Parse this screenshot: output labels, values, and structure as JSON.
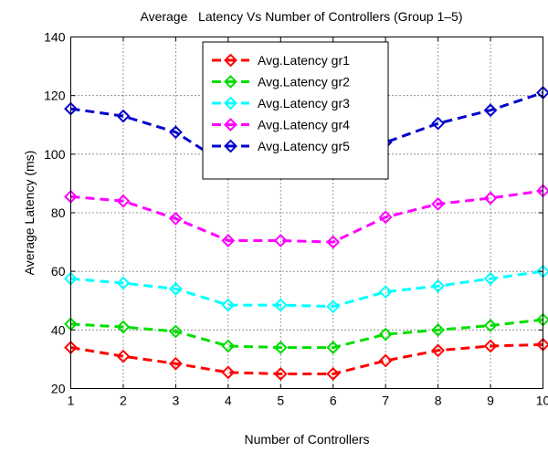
{
  "chart_data": {
    "type": "line",
    "title": "Average   Latency Vs Number of Controllers (Group 1–5)",
    "xlabel": "Number of Controllers",
    "ylabel": "Average Latency (ms)",
    "xlim": [
      1,
      10
    ],
    "ylim": [
      20,
      140
    ],
    "x": [
      1,
      2,
      3,
      4,
      5,
      6,
      7,
      8,
      9,
      10
    ],
    "x_ticks": [
      "1",
      "2",
      "3",
      "4",
      "5",
      "6",
      "7",
      "8",
      "9",
      "10"
    ],
    "y_ticks": [
      "20",
      "40",
      "60",
      "80",
      "100",
      "120",
      "140"
    ],
    "grid": true,
    "legend_position": "top-center",
    "series": [
      {
        "name": "Avg.Latency gr1",
        "color": "#ff0000",
        "values": [
          34,
          31,
          28.5,
          25.5,
          25,
          25,
          29.5,
          33,
          34.5,
          35
        ]
      },
      {
        "name": "Avg.Latency gr2",
        "color": "#00dd00",
        "values": [
          42,
          41,
          39.5,
          34.5,
          34,
          34,
          38.5,
          40,
          41.5,
          43.5
        ]
      },
      {
        "name": "Avg.Latency gr3",
        "color": "#00ffff",
        "values": [
          57.5,
          56,
          54,
          48.5,
          48.5,
          48,
          53,
          55,
          57.5,
          60
        ]
      },
      {
        "name": "Avg.Latency gr4",
        "color": "#ff00ff",
        "values": [
          85.5,
          84,
          78,
          70.5,
          70.5,
          70,
          78.5,
          83,
          85,
          87.5
        ]
      },
      {
        "name": "Avg.Latency gr5",
        "color": "#0000cc",
        "values": [
          115.5,
          113,
          107.5,
          96,
          95.5,
          95.5,
          104,
          110.5,
          115,
          121
        ]
      }
    ]
  }
}
